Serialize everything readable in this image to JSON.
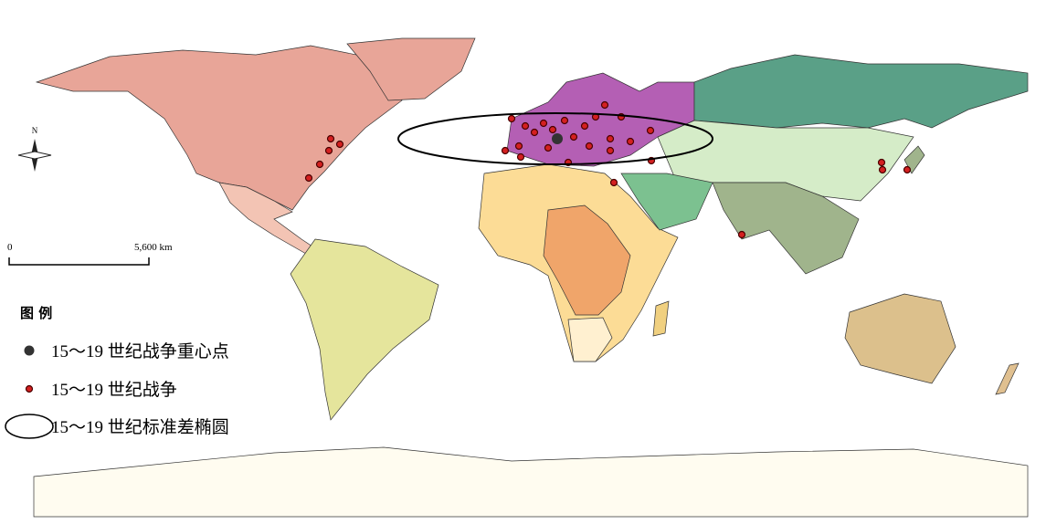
{
  "north_label": "N",
  "scale": {
    "start": "0",
    "end": "5,600 km"
  },
  "legend": {
    "title": "图 例",
    "items": [
      "15～19 世纪战争重心点",
      "15～19 世纪战争",
      "15～19 世纪标准差椭圆"
    ]
  }
}
